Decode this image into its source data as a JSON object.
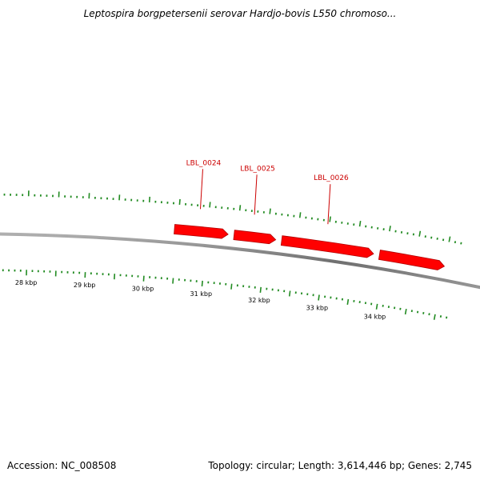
{
  "title": "Leptospira borgpetersenii serovar Hardjo-bovis L550 chromoso...",
  "footer": {
    "accession": "Accession: NC_008508",
    "summary": "Topology: circular; Length: 3,614,446 bp; Genes: 2,745"
  },
  "colors": {
    "gene": "#ff0000",
    "gene_dark": "#b00000",
    "tick": "#228b22",
    "backbone": "#808080",
    "label": "#cc0000"
  },
  "genes": [
    {
      "name": "LBL_0024",
      "start_kbp": 30.45,
      "end_kbp": 31.35
    },
    {
      "name": "LBL_0025",
      "start_kbp": 31.45,
      "end_kbp": 32.15
    },
    {
      "name": "LBL_0026",
      "start_kbp": 32.25,
      "end_kbp": 33.8
    },
    {
      "name": "",
      "start_kbp": 33.9,
      "end_kbp": 35.0
    }
  ],
  "ticks": {
    "labels": [
      "28 kbp",
      "29 kbp",
      "30 kbp",
      "31 kbp",
      "32 kbp",
      "33 kbp",
      "34 kbp"
    ],
    "label_kbp": [
      28,
      29,
      30,
      31,
      32,
      33,
      34
    ],
    "from_kbp": 26.8,
    "to_kbp": 35.2,
    "minor_step_kbp": 0.1,
    "major_every": 5
  }
}
